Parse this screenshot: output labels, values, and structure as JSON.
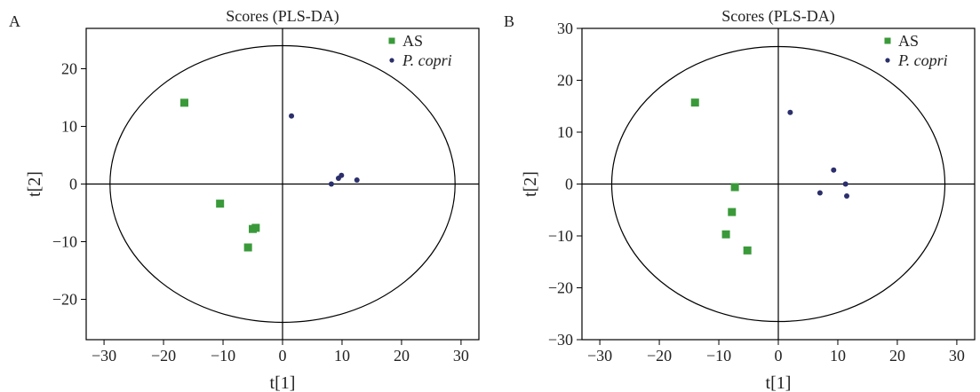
{
  "chart_data": [
    {
      "type": "scatter",
      "panel": "A",
      "title": "Scores (PLS-DA)",
      "xlabel": "t[1]",
      "ylabel": "t[2]",
      "xlim": [
        -33,
        33
      ],
      "ylim": [
        -27,
        27
      ],
      "xticks": [
        -30,
        -20,
        -10,
        0,
        10,
        20,
        30
      ],
      "yticks": [
        -20,
        -10,
        0,
        10,
        20
      ],
      "ellipse": {
        "rx": 29,
        "ry": 24
      },
      "legend_position": "top-right",
      "series": [
        {
          "name": "AS",
          "marker": "square",
          "color": "#3a9a3a",
          "points": [
            [
              -16.5,
              14.1
            ],
            [
              -10.5,
              -3.4
            ],
            [
              -5.0,
              -7.8
            ],
            [
              -4.5,
              -7.6
            ],
            [
              -5.8,
              -11.0
            ]
          ]
        },
        {
          "name": "P. copri",
          "marker": "circle",
          "color": "#2b2f6b",
          "points": [
            [
              1.5,
              11.8
            ],
            [
              8.2,
              0.0
            ],
            [
              9.4,
              1.0
            ],
            [
              9.9,
              1.5
            ],
            [
              12.5,
              0.7
            ]
          ]
        }
      ]
    },
    {
      "type": "scatter",
      "panel": "B",
      "title": "Scores (PLS-DA)",
      "xlabel": "t[1]",
      "ylabel": "t[2]",
      "xlim": [
        -33,
        33
      ],
      "ylim": [
        -30,
        30
      ],
      "xticks": [
        -30,
        -20,
        -10,
        0,
        10,
        20,
        30
      ],
      "yticks": [
        -30,
        -20,
        -10,
        0,
        10,
        20,
        30
      ],
      "ellipse": {
        "rx": 28,
        "ry": 26.5
      },
      "legend_position": "top-right",
      "series": [
        {
          "name": "AS",
          "marker": "square",
          "color": "#3a9a3a",
          "points": [
            [
              -14.0,
              15.7
            ],
            [
              -7.3,
              -0.6
            ],
            [
              -7.8,
              -5.4
            ],
            [
              -8.8,
              -9.7
            ],
            [
              -5.2,
              -12.8
            ]
          ]
        },
        {
          "name": "P. copri",
          "marker": "circle",
          "color": "#2b2f6b",
          "points": [
            [
              2.0,
              13.8
            ],
            [
              9.3,
              2.7
            ],
            [
              7.0,
              -1.7
            ],
            [
              11.3,
              0.0
            ],
            [
              11.5,
              -2.3
            ]
          ]
        }
      ]
    }
  ]
}
